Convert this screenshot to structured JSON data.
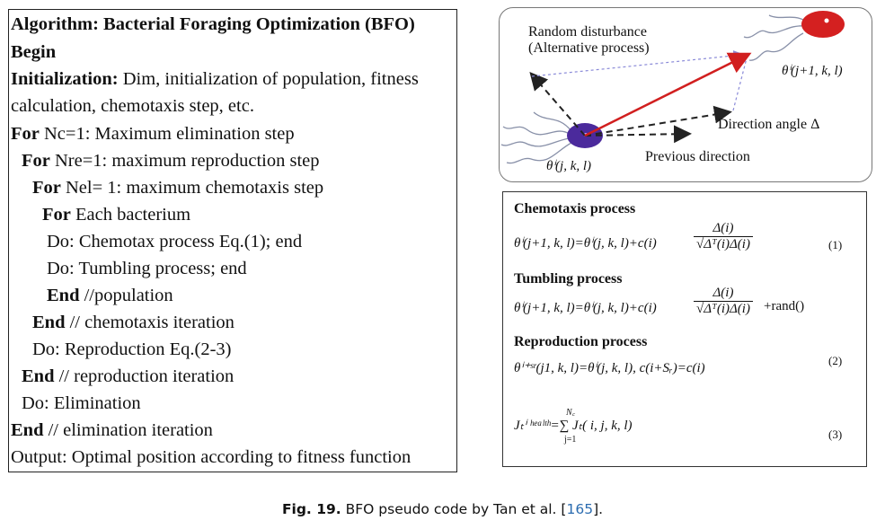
{
  "algorithm": {
    "lines": [
      {
        "bold": "Algorithm: Bacterial Foraging Optimization (BFO)",
        "text": ""
      },
      {
        "bold": "Begin",
        "text": ""
      },
      {
        "bold": "Initialization:",
        "text": " Dim, initialization of population, fitness"
      },
      {
        "bold": "",
        "text": "calculation, chemotaxis step, etc."
      },
      {
        "bold": "For",
        "text": " Nc=1: Maximum elimination step"
      },
      {
        "bold": "For",
        "text": " Nre=1: maximum reproduction step"
      },
      {
        "bold": "For",
        "text": " Nel= 1: maximum chemotaxis step"
      },
      {
        "bold": "For",
        "text": " Each bacterium"
      },
      {
        "bold": "",
        "text": "Do: Chemotax process Eq.(1); end"
      },
      {
        "bold": "",
        "text": "Do: Tumbling process; end"
      },
      {
        "bold": "End",
        "text": " //population"
      },
      {
        "bold": "End",
        "text": " //  chemotaxis iteration"
      },
      {
        "bold": "",
        "text": "Do: Reproduction Eq.(2-3)"
      },
      {
        "bold": "End",
        "text": " //  reproduction iteration"
      },
      {
        "bold": "",
        "text": "Do: Elimination"
      },
      {
        "bold": "End",
        "text": "  //  elimination iteration"
      },
      {
        "bold": "",
        "text": "Output: Optimal position according to fitness function"
      }
    ]
  },
  "diagram": {
    "random_disturbance": "Random disturbance",
    "alternative_process": "(Alternative process)",
    "direction_angle": "Direction angle Δ",
    "previous_direction": "Previous direction",
    "theta_start": "θⁱ(j, k, l)",
    "theta_end": "θⁱ(j+1, k, l)",
    "colors": {
      "start_bacterium": "#4b2a9c",
      "end_bacterium": "#d42020",
      "main_arrow": "#d11f1f"
    }
  },
  "formulas": {
    "chemotaxis_title": "Chemotaxis process",
    "tumbling_title": "Tumbling process",
    "reproduction_title": "Reproduction process",
    "eq1_left": "θⁱ(j+1, k, l)=θⁱ(j, k, l)+c(i)",
    "frac_num": "Δ(i)",
    "frac_den": "√Δᵀ(i)Δ(i)",
    "tumbling_left": "θⁱ(j+1, k, l)=θⁱ(j, k, l)+c(i)",
    "rand": "+rand()",
    "eq2": "θⁱ⁺ˢʳ(j1, k, l)=θⁱ(j, k, l), c(i+Sᵣ)=c(i)",
    "eq3": "Jₜⁱ ʰᵉᵃˡᵗʰ=∑ Jₜ( i, j, k, l)",
    "sum_top": "N꜀",
    "sum_bottom": "j=1",
    "eq1_no": "(1)",
    "eq2_no": "(2)",
    "eq3_no": "(3)"
  },
  "caption": {
    "label": "Fig. 19.",
    "text": " BFO pseudo code by Tan et al. [",
    "ref": "165",
    "end": "]."
  }
}
